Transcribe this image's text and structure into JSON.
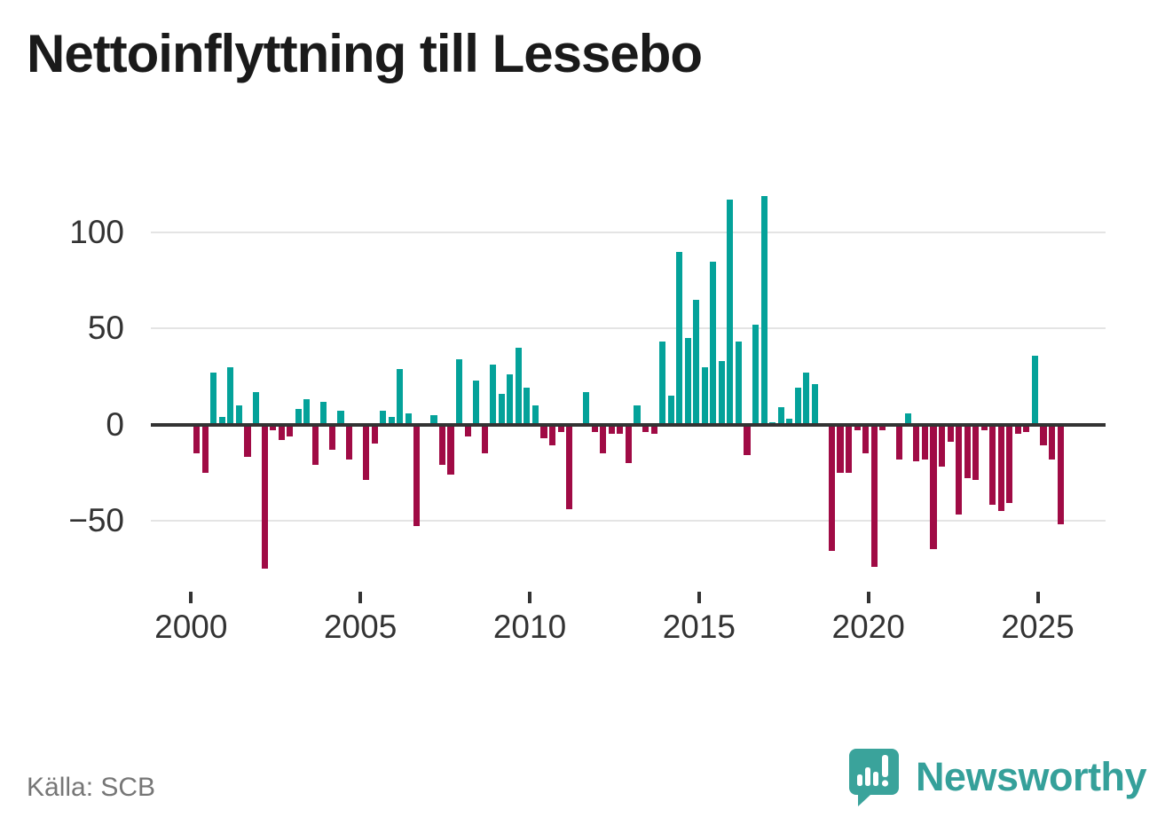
{
  "title": "Nettoinflyttning till Lessebo",
  "source": "Källa: SCB",
  "branding": {
    "name": "Newsworthy"
  },
  "colors": {
    "positive": "#04a29a",
    "negative": "#a00b45",
    "axis": "#333333",
    "grid": "#e4e4e4",
    "title": "#1a1a1a",
    "tick_label": "#333333",
    "source_text": "#767676",
    "brand": "#35a09a"
  },
  "chart_data": {
    "type": "bar",
    "title": "Nettoinflyttning till Lessebo",
    "frequency": "quarterly",
    "start_period": "2000-Q1",
    "end_period": "2025-Q3",
    "x_tick_years": [
      2000,
      2005,
      2010,
      2015,
      2020,
      2025
    ],
    "y_ticks": [
      100,
      50,
      0,
      -50
    ],
    "ylim": [
      -80,
      125
    ],
    "grid": true,
    "legend_position": "none",
    "series": [
      {
        "name": "Nettoinflyttning",
        "values": [
          -15,
          -25,
          27,
          4,
          30,
          10,
          -17,
          17,
          -75,
          -3,
          -8,
          -6,
          8,
          13,
          -21,
          12,
          -13,
          7,
          -18,
          0,
          -29,
          -10,
          7,
          4,
          29,
          6,
          -53,
          0,
          5,
          -21,
          -26,
          34,
          -6,
          23,
          -15,
          31,
          16,
          26,
          40,
          19,
          10,
          -7,
          -11,
          -4,
          -44,
          0,
          17,
          -4,
          -15,
          -5,
          -5,
          -20,
          10,
          -4,
          -5,
          43,
          15,
          90,
          45,
          65,
          30,
          85,
          33,
          117,
          43,
          -16,
          52,
          119,
          1,
          9,
          3,
          19,
          27,
          21,
          0,
          -66,
          -25,
          -25,
          -3,
          -15,
          -74,
          -3,
          0,
          -18,
          6,
          -19,
          -18,
          -65,
          -22,
          -9,
          -47,
          -28,
          -29,
          -3,
          -42,
          -45,
          -41,
          -5,
          -4,
          36,
          -11,
          -18,
          -52
        ]
      }
    ]
  }
}
